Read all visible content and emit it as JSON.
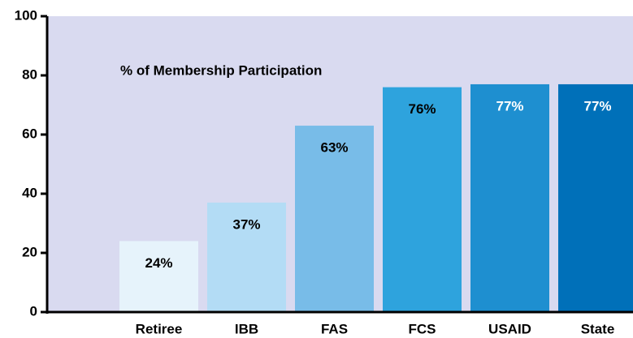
{
  "chart_data": {
    "type": "bar",
    "annotation": "% of Membership Participation",
    "categories": [
      "Retiree",
      "IBB",
      "FAS",
      "FCS",
      "USAID",
      "State"
    ],
    "values": [
      24,
      37,
      63,
      76,
      77,
      77
    ],
    "value_labels": [
      "24%",
      "37%",
      "63%",
      "76%",
      "77%",
      "77%"
    ],
    "colors": [
      "#e6f3fb",
      "#b3dcf5",
      "#78bce8",
      "#2ea3dd",
      "#1e8fd0",
      "#0070b9"
    ],
    "label_colors": [
      "#000000",
      "#000000",
      "#000000",
      "#000000",
      "#ffffff",
      "#ffffff"
    ],
    "background": "#d9daf0",
    "ylim": [
      0,
      100
    ],
    "yticks": [
      0,
      20,
      40,
      60,
      80,
      100
    ],
    "grid": false
  }
}
